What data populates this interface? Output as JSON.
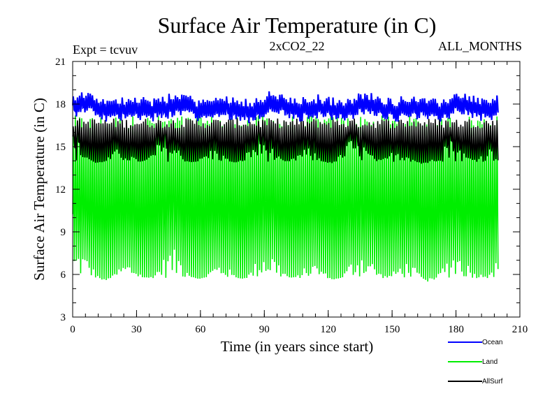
{
  "chart_data": {
    "type": "line",
    "title": "Surface Air Temperature (in C)",
    "annotations": {
      "left": "Expt = tcvuv",
      "center": "2xCO2_22",
      "right": "ALL_MONTHS"
    },
    "xlabel": "Time (in years since start)",
    "ylabel": "Surface Air Temperature (in C)",
    "xlim": [
      0,
      210
    ],
    "ylim": [
      3,
      21
    ],
    "xticks": [
      0,
      30,
      60,
      90,
      120,
      150,
      180,
      210
    ],
    "yticks": [
      3,
      6,
      9,
      12,
      15,
      18,
      21
    ],
    "x_minor_step": 6,
    "y_minor_step": 1,
    "grid": false,
    "legend_position": "bottom-right",
    "record_years": 200,
    "seasonal_period_years": 1,
    "series": [
      {
        "name": "Ocean",
        "color": "#0000ff",
        "seasonal_min": 16.7,
        "seasonal_max": 17.6,
        "mean_range": [
          16.8,
          18.2
        ]
      },
      {
        "name": "Land",
        "color": "#00ee00",
        "seasonal_min": 5.8,
        "seasonal_max": 16.8,
        "min_range": [
          4.9,
          7.3
        ],
        "max_range": [
          15.5,
          17.2
        ]
      },
      {
        "name": "AllSurf",
        "color": "#000000",
        "seasonal_min": 14.2,
        "seasonal_max": 16.6,
        "min_range": [
          13.2,
          15.3
        ],
        "max_range": [
          16.0,
          17.0
        ]
      }
    ]
  }
}
